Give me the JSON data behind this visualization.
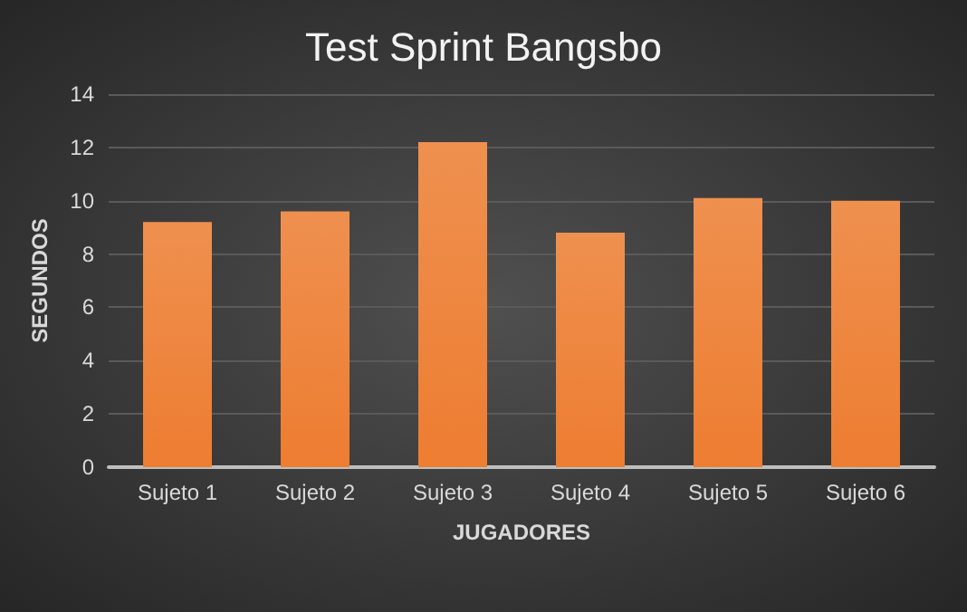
{
  "chart_data": {
    "type": "bar",
    "title": "Test Sprint Bangsbo",
    "xlabel": "JUGADORES",
    "ylabel": "SEGUNDOS",
    "categories": [
      "Sujeto 1",
      "Sujeto 2",
      "Sujeto 3",
      "Sujeto 4",
      "Sujeto 5",
      "Sujeto 6"
    ],
    "values": [
      9.2,
      9.6,
      12.2,
      8.8,
      10.1,
      10.0
    ],
    "color": "#ed7d31",
    "ylim": [
      0,
      14
    ],
    "yticks": [
      0,
      2,
      4,
      6,
      8,
      10,
      12,
      14
    ],
    "grid": "y"
  }
}
